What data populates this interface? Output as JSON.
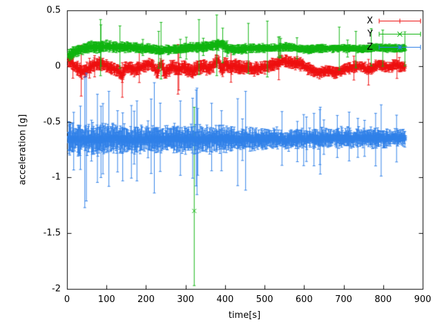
{
  "chart_data": {
    "type": "scatter",
    "style": "points-with-yerrorbars",
    "title": "",
    "xlabel": "time[s]",
    "ylabel": "acceleration [g]",
    "xlim": [
      0,
      900
    ],
    "ylim": [
      -2,
      0.5
    ],
    "xticks": [
      0,
      100,
      200,
      300,
      400,
      500,
      600,
      700,
      800,
      900
    ],
    "xtick_labels": [
      "0",
      "100",
      "200",
      "300",
      "400",
      "500",
      "600",
      "700",
      "800",
      "900"
    ],
    "yticks": [
      -2,
      -1.5,
      -1,
      -0.5,
      0,
      0.5
    ],
    "ytick_labels": [
      "-2",
      "-1.5",
      "-1",
      "-0.5",
      "0",
      "0.5"
    ],
    "grid": false,
    "legend_position": "top-right",
    "frame": {
      "background": "#ffffff",
      "axis_color": "#000000",
      "text_color": "#000000"
    },
    "series": [
      {
        "name": "X",
        "color": "#ee1111",
        "marker": "plus",
        "t_range": [
          3,
          856
        ],
        "sample_step": 1,
        "noise": 0.012,
        "errorbar": 0.035,
        "big_chance": 0.02,
        "big_mult_min": 2.0,
        "big_mult_span": 2.5,
        "spread": [
          [
            3,
            1.1
          ],
          [
            150,
            1.0
          ],
          [
            400,
            1.1
          ],
          [
            600,
            0.9
          ],
          [
            856,
            0.8
          ]
        ],
        "trend": [
          [
            3,
            0.06
          ],
          [
            12,
            0.03
          ],
          [
            25,
            -0.02
          ],
          [
            38,
            -0.05
          ],
          [
            55,
            -0.02
          ],
          [
            70,
            0.01
          ],
          [
            85,
            0.02
          ],
          [
            100,
            0.0
          ],
          [
            115,
            -0.02
          ],
          [
            128,
            -0.04
          ],
          [
            140,
            -0.08
          ],
          [
            148,
            -0.01
          ],
          [
            160,
            -0.01
          ],
          [
            172,
            -0.04
          ],
          [
            185,
            -0.01
          ],
          [
            200,
            0.01
          ],
          [
            215,
            0.02
          ],
          [
            228,
            -0.06
          ],
          [
            238,
            0.03
          ],
          [
            248,
            -0.06
          ],
          [
            258,
            -0.03
          ],
          [
            268,
            0.0
          ],
          [
            280,
            -0.04
          ],
          [
            292,
            -0.01
          ],
          [
            305,
            -0.03
          ],
          [
            318,
            -0.05
          ],
          [
            330,
            -0.01
          ],
          [
            345,
            0.0
          ],
          [
            358,
            -0.02
          ],
          [
            370,
            0.01
          ],
          [
            382,
            0.05
          ],
          [
            392,
            -0.04
          ],
          [
            400,
            0.02
          ],
          [
            412,
            -0.01
          ],
          [
            425,
            0.0
          ],
          [
            440,
            -0.02
          ],
          [
            455,
            -0.01
          ],
          [
            470,
            -0.03
          ],
          [
            485,
            -0.02
          ],
          [
            500,
            -0.01
          ],
          [
            515,
            0.0
          ],
          [
            530,
            0.02
          ],
          [
            545,
            0.05
          ],
          [
            558,
            0.04
          ],
          [
            570,
            0.02
          ],
          [
            582,
            0.03
          ],
          [
            595,
            0.01
          ],
          [
            608,
            -0.02
          ],
          [
            622,
            -0.04
          ],
          [
            635,
            -0.06
          ],
          [
            650,
            -0.05
          ],
          [
            665,
            -0.04
          ],
          [
            680,
            -0.06
          ],
          [
            695,
            -0.04
          ],
          [
            710,
            -0.02
          ],
          [
            725,
            -0.01
          ],
          [
            742,
            0.0
          ],
          [
            758,
            -0.03
          ],
          [
            772,
            -0.02
          ],
          [
            788,
            0.01
          ],
          [
            802,
            0.0
          ],
          [
            815,
            -0.02
          ],
          [
            828,
            0.01
          ],
          [
            842,
            0.0
          ],
          [
            856,
            -0.01
          ]
        ],
        "outliers": [
          {
            "t": 140,
            "y": -0.12,
            "lo": -0.28,
            "hi": 0.03
          },
          {
            "t": 763,
            "y": -0.05,
            "lo": -0.17,
            "hi": 0.06
          }
        ]
      },
      {
        "name": "Y",
        "color": "#0fb40f",
        "marker": "cross",
        "t_range": [
          3,
          856
        ],
        "sample_step": 1,
        "noise": 0.008,
        "errorbar": 0.025,
        "big_chance": 0.04,
        "big_mult_min": 3.0,
        "big_mult_span": 5.0,
        "spread": [
          [
            3,
            1.3
          ],
          [
            120,
            1.2
          ],
          [
            250,
            0.9
          ],
          [
            400,
            1.2
          ],
          [
            500,
            0.9
          ],
          [
            856,
            0.8
          ]
        ],
        "trend": [
          [
            3,
            0.1
          ],
          [
            15,
            0.12
          ],
          [
            30,
            0.14
          ],
          [
            45,
            0.16
          ],
          [
            60,
            0.17
          ],
          [
            80,
            0.17
          ],
          [
            100,
            0.18
          ],
          [
            120,
            0.17
          ],
          [
            140,
            0.17
          ],
          [
            160,
            0.17
          ],
          [
            180,
            0.16
          ],
          [
            200,
            0.16
          ],
          [
            220,
            0.15
          ],
          [
            235,
            0.14
          ],
          [
            250,
            0.15
          ],
          [
            265,
            0.15
          ],
          [
            280,
            0.15
          ],
          [
            300,
            0.16
          ],
          [
            320,
            0.17
          ],
          [
            340,
            0.17
          ],
          [
            360,
            0.18
          ],
          [
            378,
            0.19
          ],
          [
            392,
            0.2
          ],
          [
            405,
            0.16
          ],
          [
            420,
            0.15
          ],
          [
            440,
            0.15
          ],
          [
            460,
            0.16
          ],
          [
            480,
            0.16
          ],
          [
            500,
            0.16
          ],
          [
            520,
            0.16
          ],
          [
            540,
            0.17
          ],
          [
            560,
            0.17
          ],
          [
            580,
            0.16
          ],
          [
            600,
            0.15
          ],
          [
            620,
            0.15
          ],
          [
            640,
            0.16
          ],
          [
            660,
            0.16
          ],
          [
            680,
            0.16
          ],
          [
            700,
            0.16
          ],
          [
            720,
            0.16
          ],
          [
            740,
            0.15
          ],
          [
            760,
            0.16
          ],
          [
            780,
            0.17
          ],
          [
            800,
            0.16
          ],
          [
            820,
            0.16
          ],
          [
            840,
            0.16
          ],
          [
            856,
            0.16
          ]
        ],
        "outliers": [
          {
            "t": 86,
            "y": 0.18,
            "lo": 0.0,
            "hi": 0.37
          },
          {
            "t": 134,
            "y": 0.17,
            "lo": -0.02,
            "hi": 0.36
          },
          {
            "t": 322,
            "y": -1.3,
            "lo": -1.97,
            "hi": -0.37
          },
          {
            "t": 394,
            "y": 0.19,
            "lo": 0.03,
            "hi": 0.34
          }
        ]
      },
      {
        "name": "Z",
        "color": "#3080e8",
        "marker": "star",
        "t_range": [
          3,
          856
        ],
        "sample_step": 1,
        "noise": 0.025,
        "errorbar": 0.06,
        "big_chance": 0.05,
        "big_mult_min": 2.5,
        "big_mult_span": 3.0,
        "spread": [
          [
            3,
            1.5
          ],
          [
            120,
            1.3
          ],
          [
            220,
            1.1
          ],
          [
            320,
            1.4
          ],
          [
            430,
            1.0
          ],
          [
            620,
            0.85
          ],
          [
            856,
            0.8
          ]
        ],
        "trend": [
          [
            3,
            -0.66
          ],
          [
            40,
            -0.66
          ],
          [
            80,
            -0.66
          ],
          [
            120,
            -0.65
          ],
          [
            160,
            -0.66
          ],
          [
            200,
            -0.65
          ],
          [
            240,
            -0.66
          ],
          [
            280,
            -0.65
          ],
          [
            320,
            -0.66
          ],
          [
            360,
            -0.66
          ],
          [
            400,
            -0.65
          ],
          [
            440,
            -0.66
          ],
          [
            480,
            -0.66
          ],
          [
            520,
            -0.65
          ],
          [
            560,
            -0.66
          ],
          [
            600,
            -0.65
          ],
          [
            640,
            -0.65
          ],
          [
            680,
            -0.64
          ],
          [
            720,
            -0.65
          ],
          [
            760,
            -0.64
          ],
          [
            800,
            -0.65
          ],
          [
            830,
            -0.64
          ],
          [
            856,
            -0.65
          ]
        ],
        "outliers": [
          {
            "t": 86,
            "y": -0.68,
            "lo": -1.0,
            "hi": -0.36
          },
          {
            "t": 128,
            "y": -0.67,
            "lo": -0.95,
            "hi": -0.4
          },
          {
            "t": 141,
            "y": -0.66,
            "lo": -1.03,
            "hi": -0.42
          },
          {
            "t": 331,
            "y": -0.64,
            "lo": -0.98,
            "hi": -0.38
          },
          {
            "t": 391,
            "y": -0.66,
            "lo": -0.94,
            "hi": -0.4
          }
        ]
      }
    ]
  }
}
